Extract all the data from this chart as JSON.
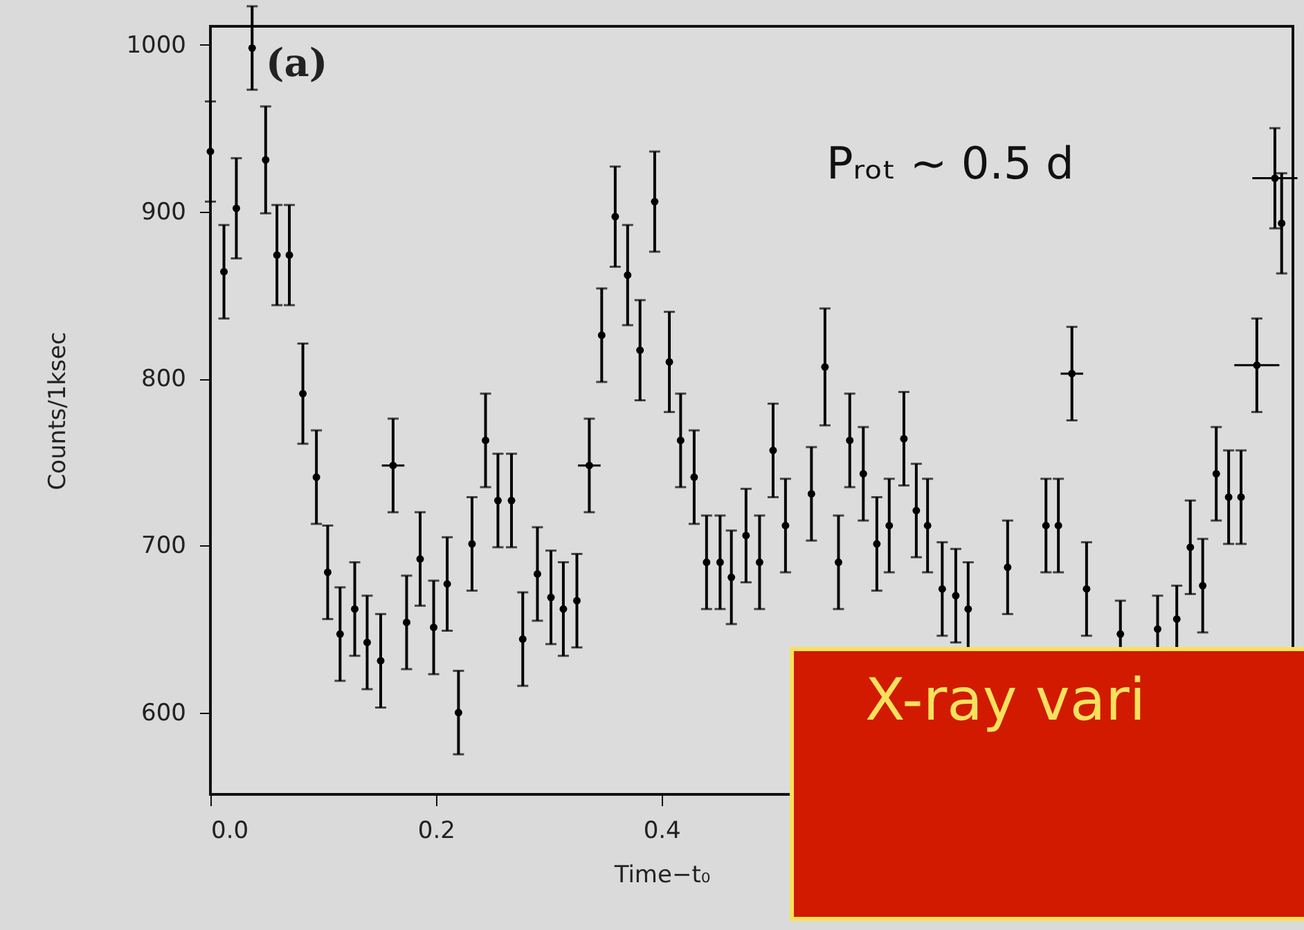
{
  "chart_data": {
    "type": "scatter",
    "xlabel": "Time−t₀",
    "ylabel": "Counts/1ksec",
    "annotations": [
      "(a)",
      "Pᵣₒₜ ~ 0.5 d",
      "X-ray vari"
    ],
    "x": [
      0.0,
      0.012,
      0.023,
      0.037,
      0.049,
      0.059,
      0.07,
      0.082,
      0.094,
      0.104,
      0.115,
      0.128,
      0.139,
      0.151,
      0.162,
      0.174,
      0.186,
      0.198,
      0.21,
      0.22,
      0.232,
      0.244,
      0.255,
      0.267,
      0.277,
      0.29,
      0.302,
      0.313,
      0.325,
      0.336,
      0.347,
      0.359,
      0.37,
      0.381,
      0.394,
      0.407,
      0.417,
      0.429,
      0.44,
      0.452,
      0.462,
      0.475,
      0.487,
      0.499,
      0.51,
      0.533,
      0.545,
      0.557,
      0.567,
      0.579,
      0.591,
      0.602,
      0.615,
      0.626,
      0.636,
      0.649,
      0.661,
      0.672,
      0.707,
      0.741,
      0.752,
      0.764,
      0.777,
      0.807,
      0.84,
      0.857,
      0.869,
      0.88,
      0.892,
      0.903,
      0.914,
      0.928,
      0.944,
      0.95
    ],
    "values": [
      936,
      864,
      902,
      998,
      931,
      874,
      874,
      791,
      741,
      684,
      647,
      662,
      642,
      631,
      748,
      654,
      692,
      651,
      677,
      600,
      701,
      763,
      727,
      727,
      644,
      683,
      669,
      662,
      667,
      748,
      826,
      897,
      862,
      817,
      906,
      810,
      763,
      741,
      690,
      690,
      681,
      706,
      690,
      757,
      712,
      731,
      807,
      690,
      763,
      743,
      701,
      712,
      764,
      721,
      712,
      674,
      670,
      662,
      687,
      712,
      712,
      803,
      674,
      647,
      650,
      656,
      699,
      676,
      743,
      729,
      729,
      808,
      920,
      893
    ],
    "errors": [
      30,
      28,
      30,
      25,
      32,
      30,
      30,
      30,
      28,
      28,
      28,
      28,
      28,
      28,
      28,
      28,
      28,
      28,
      28,
      25,
      28,
      28,
      28,
      28,
      28,
      28,
      28,
      28,
      28,
      28,
      28,
      30,
      30,
      30,
      30,
      30,
      28,
      28,
      28,
      28,
      28,
      28,
      28,
      28,
      28,
      28,
      35,
      28,
      28,
      28,
      28,
      28,
      28,
      28,
      28,
      28,
      28,
      28,
      28,
      28,
      28,
      28,
      28,
      20,
      20,
      20,
      28,
      28,
      28,
      28,
      28,
      28,
      30,
      30
    ],
    "xerrors": [
      null,
      null,
      null,
      null,
      null,
      null,
      null,
      null,
      null,
      null,
      null,
      null,
      null,
      null,
      0.01,
      null,
      null,
      null,
      null,
      null,
      null,
      null,
      null,
      null,
      null,
      null,
      null,
      null,
      null,
      0.01,
      null,
      null,
      null,
      null,
      null,
      null,
      null,
      null,
      null,
      null,
      null,
      null,
      null,
      null,
      null,
      null,
      null,
      null,
      null,
      null,
      null,
      null,
      null,
      null,
      null,
      null,
      null,
      null,
      null,
      null,
      null,
      0.01,
      null,
      null,
      null,
      null,
      null,
      null,
      null,
      null,
      null,
      0.02,
      0.02,
      null
    ],
    "color": "#000000",
    "xlim": [
      0,
      0.96
    ],
    "ylim": [
      551,
      1011
    ],
    "xticks": [
      {
        "value": 0,
        "label": "0.0"
      },
      0.2,
      0.4,
      {
        "value": 0.6,
        "label": null
      },
      {
        "value": 0.8,
        "label": null
      }
    ],
    "yticks": [
      600,
      700,
      800,
      900,
      1000
    ],
    "marker": "circle",
    "grid": false
  }
}
